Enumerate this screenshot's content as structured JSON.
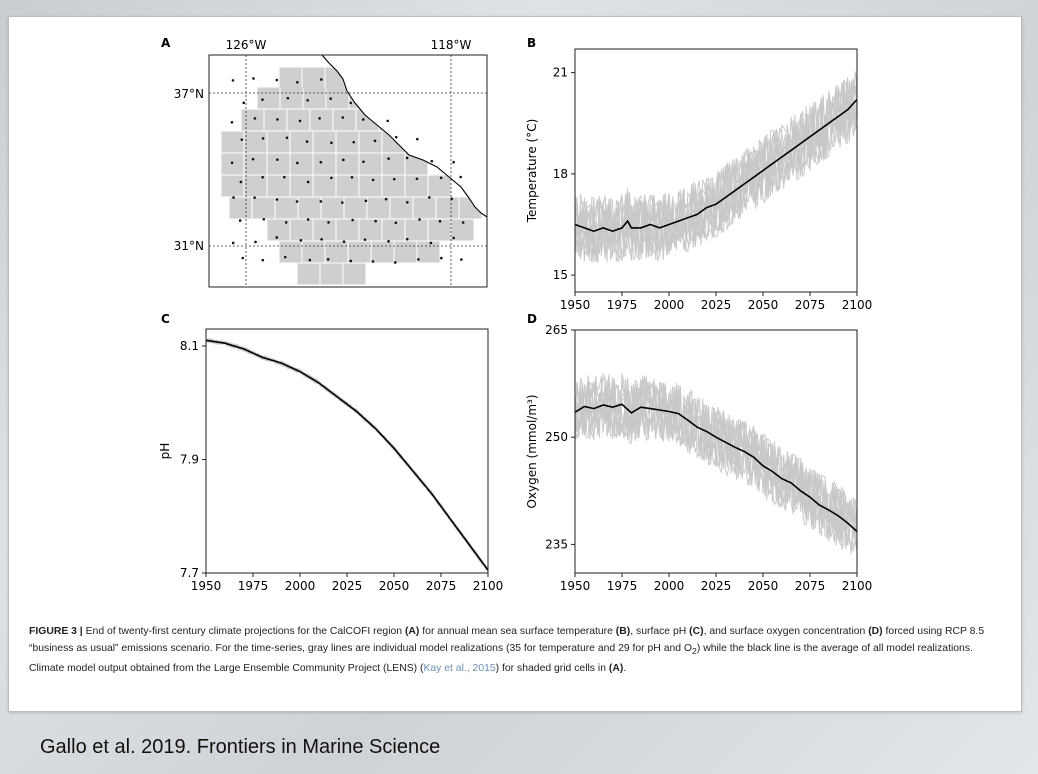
{
  "slide": {
    "credit": "Gallo et al. 2019. Frontiers in Marine Science",
    "colors": {
      "panel": "#ffffff",
      "ensemble": "#c8c8c8",
      "mean": "#000000",
      "grid_cell": "#cfcfcf"
    }
  },
  "caption": {
    "label": "FIGURE 3 |",
    "t1": " End of twenty-first century climate projections for the CalCOFI region ",
    "r1": "(A)",
    "t2": " for annual mean sea surface temperature ",
    "r2": "(B)",
    "t3": ", surface pH ",
    "r3": "(C)",
    "t4": ", and surface oxygen concentration ",
    "r4": "(D)",
    "t5": " forced using RCP 8.5 “business as usual” emissions scenario. For the time-series, gray lines are individual model realizations (35 for temperature and 29 for pH and O",
    "sub": "2",
    "t6": ") while the black line is the average of all model realizations. Climate model output obtained from the Large Ensemble Community Project (LENS) (",
    "cite": "Kay et al., 2015",
    "t7": ") for shaded grid cells in ",
    "r5": "(A)",
    "t8": "."
  },
  "map": {
    "panel_label": "A",
    "lon_labels": [
      "126°W",
      "118°W"
    ],
    "lat_labels": [
      "37°N",
      "31°N"
    ],
    "icons": [
      "coastline",
      "sampling-station-dot",
      "shaded-grid-cell"
    ]
  },
  "chart_data": [
    {
      "panel_label": "B",
      "type": "line",
      "xlabel": "",
      "ylabel": "Temperature (°C)",
      "xlim": [
        1950,
        2100
      ],
      "ylim": [
        14.5,
        21.7
      ],
      "xticks": [
        1950,
        1975,
        2000,
        2025,
        2050,
        2075,
        2100
      ],
      "yticks": [
        15,
        18,
        21
      ],
      "ensemble_spread": 1.0,
      "series": [
        {
          "x": [
            1950,
            1955,
            1960,
            1965,
            1970,
            1975,
            1978,
            1980,
            1985,
            1990,
            1995,
            2000,
            2005,
            2010,
            2015,
            2020,
            2025,
            2030,
            2035,
            2040,
            2045,
            2050,
            2055,
            2060,
            2065,
            2070,
            2075,
            2080,
            2085,
            2090,
            2095,
            2100
          ],
          "y": [
            16.5,
            16.4,
            16.3,
            16.4,
            16.3,
            16.4,
            16.6,
            16.4,
            16.4,
            16.5,
            16.4,
            16.5,
            16.6,
            16.7,
            16.8,
            17.0,
            17.1,
            17.3,
            17.5,
            17.7,
            17.9,
            18.1,
            18.3,
            18.5,
            18.7,
            18.9,
            19.1,
            19.3,
            19.5,
            19.7,
            19.9,
            20.2
          ]
        }
      ]
    },
    {
      "panel_label": "C",
      "type": "line",
      "xlabel": "",
      "ylabel": "pH",
      "xlim": [
        1950,
        2100
      ],
      "ylim": [
        7.7,
        8.13
      ],
      "xticks": [
        1950,
        1975,
        2000,
        2025,
        2050,
        2075,
        2100
      ],
      "yticks": [
        7.7,
        7.9,
        8.1
      ],
      "ensemble_spread": 0.004,
      "series": [
        {
          "x": [
            1950,
            1960,
            1970,
            1980,
            1990,
            2000,
            2010,
            2020,
            2030,
            2040,
            2050,
            2060,
            2070,
            2080,
            2090,
            2100
          ],
          "y": [
            8.11,
            8.105,
            8.095,
            8.08,
            8.07,
            8.055,
            8.035,
            8.01,
            7.985,
            7.955,
            7.92,
            7.88,
            7.84,
            7.795,
            7.75,
            7.705
          ]
        }
      ]
    },
    {
      "panel_label": "D",
      "type": "line",
      "xlabel": "",
      "ylabel": "Oxygen (mmol/m³)",
      "xlim": [
        1950,
        2100
      ],
      "ylim": [
        231,
        265
      ],
      "xticks": [
        1950,
        1975,
        2000,
        2025,
        2050,
        2075,
        2100
      ],
      "yticks": [
        235,
        250,
        265
      ],
      "ensemble_spread": 4.5,
      "series": [
        {
          "x": [
            1950,
            1955,
            1960,
            1965,
            1970,
            1975,
            1980,
            1985,
            1990,
            1995,
            2000,
            2005,
            2010,
            2015,
            2020,
            2025,
            2030,
            2035,
            2040,
            2045,
            2050,
            2055,
            2060,
            2065,
            2070,
            2075,
            2080,
            2085,
            2090,
            2095,
            2100
          ],
          "y": [
            253.5,
            254.3,
            254.0,
            254.5,
            254.2,
            254.6,
            253.4,
            254.2,
            254.0,
            253.8,
            253.6,
            253.3,
            252.4,
            251.4,
            250.8,
            250.0,
            249.3,
            248.6,
            248.0,
            247.2,
            246.0,
            245.2,
            244.2,
            243.6,
            242.5,
            241.6,
            240.5,
            239.8,
            239.0,
            238.0,
            236.8
          ]
        }
      ]
    }
  ]
}
